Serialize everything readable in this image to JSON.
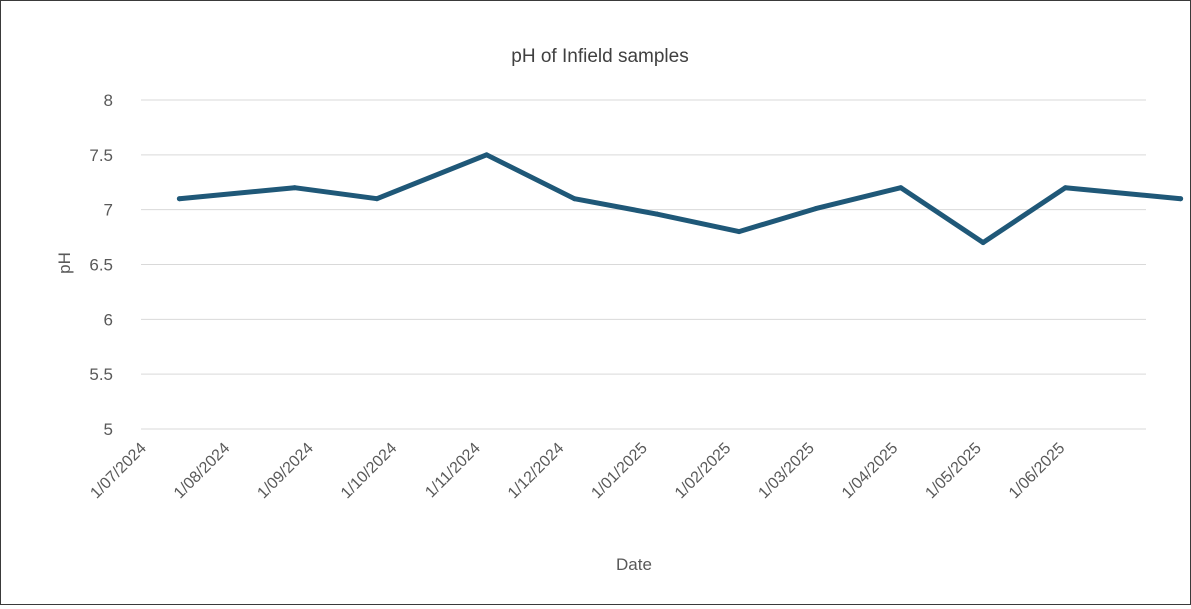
{
  "chart_data": {
    "type": "line",
    "title": "pH of Infield samples",
    "xlabel": "Date",
    "ylabel": "pH",
    "ylim": [
      5,
      8
    ],
    "yticks": [
      "5",
      "5.5",
      "6",
      "6.5",
      "7",
      "7.5",
      "8"
    ],
    "x_tick_labels": [
      "1/07/2024",
      "1/08/2024",
      "1/09/2024",
      "1/10/2024",
      "1/11/2024",
      "1/12/2024",
      "1/01/2025",
      "1/02/2025",
      "1/03/2025",
      "1/04/2025",
      "1/05/2025",
      "1/06/2025"
    ],
    "grid": true,
    "legend": "none",
    "series": [
      {
        "color": "#1f5878",
        "points": [
          {
            "x": "2024-07-15",
            "y": 7.1
          },
          {
            "x": "2024-08-26",
            "y": 7.2
          },
          {
            "x": "2024-09-25",
            "y": 7.1
          },
          {
            "x": "2024-11-04",
            "y": 7.5
          },
          {
            "x": "2024-12-06",
            "y": 7.1
          },
          {
            "x": "2025-01-05",
            "y": 6.96
          },
          {
            "x": "2025-02-04",
            "y": 6.8
          },
          {
            "x": "2025-03-04",
            "y": 7.01
          },
          {
            "x": "2025-04-04",
            "y": 7.2
          },
          {
            "x": "2025-05-04",
            "y": 6.7
          },
          {
            "x": "2025-06-03",
            "y": 7.2
          },
          {
            "x": "2025-07-15",
            "y": 7.1
          }
        ]
      }
    ]
  }
}
